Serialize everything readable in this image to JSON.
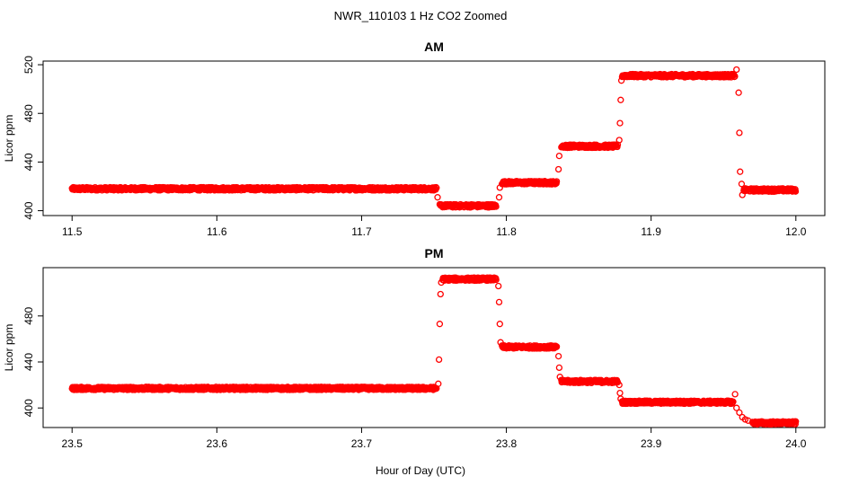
{
  "title": "NWR_110103  1 Hz CO2 Zoomed",
  "xlabel": "Hour of Day (UTC)",
  "colors": {
    "points": "#ff0000",
    "axis": "#000000"
  },
  "chart_data": [
    {
      "type": "scatter",
      "title": "AM",
      "xlabel": "",
      "ylabel": "Licor ppm",
      "xlim": [
        11.5,
        12.0
      ],
      "ylim": [
        396,
        523
      ],
      "xticks": [
        11.5,
        11.6,
        11.7,
        11.8,
        11.9,
        12.0
      ],
      "xtick_labels": [
        "11.5",
        "11.6",
        "11.7",
        "11.8",
        "11.9",
        "12.0"
      ],
      "yticks": [
        400,
        440,
        480,
        520
      ],
      "ytick_labels": [
        "400",
        "440",
        "480",
        "520"
      ],
      "grid": false,
      "marker": "open-circle",
      "series": [
        {
          "segments": [
            {
              "x": [
                11.5,
                11.752
              ],
              "y": 418
            },
            {
              "x": [
                11.754,
                11.793
              ],
              "y": 404
            },
            {
              "x": [
                11.797,
                11.835
              ],
              "y": 423
            },
            {
              "x": [
                11.838,
                11.877
              ],
              "y": 453
            },
            {
              "x": [
                11.88,
                11.958
              ],
              "y": 511
            },
            {
              "x": [
                11.964,
                12.0
              ],
              "y": 417
            }
          ],
          "transitions": [
            {
              "x": 11.7525,
              "y": 411
            },
            {
              "x": 11.795,
              "y": 411
            },
            {
              "x": 11.7955,
              "y": 419
            },
            {
              "x": 11.836,
              "y": 434
            },
            {
              "x": 11.8365,
              "y": 445
            },
            {
              "x": 11.878,
              "y": 458
            },
            {
              "x": 11.8785,
              "y": 472
            },
            {
              "x": 11.879,
              "y": 491
            },
            {
              "x": 11.8795,
              "y": 507
            },
            {
              "x": 11.959,
              "y": 516
            },
            {
              "x": 11.9605,
              "y": 497
            },
            {
              "x": 11.961,
              "y": 464
            },
            {
              "x": 11.9615,
              "y": 432
            },
            {
              "x": 11.9625,
              "y": 422
            },
            {
              "x": 11.963,
              "y": 413
            }
          ]
        }
      ]
    },
    {
      "type": "scatter",
      "title": "PM",
      "xlabel": "",
      "ylabel": "Licor ppm",
      "xlim": [
        23.5,
        24.0
      ],
      "ylim": [
        383,
        522
      ],
      "xticks": [
        23.5,
        23.6,
        23.7,
        23.8,
        23.9,
        24.0
      ],
      "xtick_labels": [
        "23.5",
        "23.6",
        "23.7",
        "23.8",
        "23.9",
        "24.0"
      ],
      "yticks": [
        400,
        440,
        480
      ],
      "ytick_labels": [
        "400",
        "440",
        "480"
      ],
      "grid": false,
      "marker": "open-circle",
      "series": [
        {
          "segments": [
            {
              "x": [
                23.5,
                23.752
              ],
              "y": 417
            },
            {
              "x": [
                23.756,
                23.793
              ],
              "y": 512
            },
            {
              "x": [
                23.797,
                23.835
              ],
              "y": 453
            },
            {
              "x": [
                23.838,
                23.877
              ],
              "y": 423
            },
            {
              "x": [
                23.88,
                23.957
              ],
              "y": 405
            },
            {
              "x": [
                23.97,
                24.0
              ],
              "y": 387
            }
          ],
          "transitions": [
            {
              "x": 23.753,
              "y": 421
            },
            {
              "x": 23.7535,
              "y": 442
            },
            {
              "x": 23.754,
              "y": 473
            },
            {
              "x": 23.7545,
              "y": 499
            },
            {
              "x": 23.755,
              "y": 509
            },
            {
              "x": 23.7945,
              "y": 506
            },
            {
              "x": 23.795,
              "y": 492
            },
            {
              "x": 23.7955,
              "y": 473
            },
            {
              "x": 23.796,
              "y": 457
            },
            {
              "x": 23.836,
              "y": 445
            },
            {
              "x": 23.8365,
              "y": 435
            },
            {
              "x": 23.837,
              "y": 427
            },
            {
              "x": 23.878,
              "y": 420
            },
            {
              "x": 23.8785,
              "y": 413
            },
            {
              "x": 23.879,
              "y": 408
            },
            {
              "x": 23.958,
              "y": 412
            },
            {
              "x": 23.959,
              "y": 400
            },
            {
              "x": 23.961,
              "y": 396
            },
            {
              "x": 23.963,
              "y": 392
            },
            {
              "x": 23.965,
              "y": 390
            },
            {
              "x": 23.967,
              "y": 389
            }
          ]
        }
      ]
    }
  ]
}
